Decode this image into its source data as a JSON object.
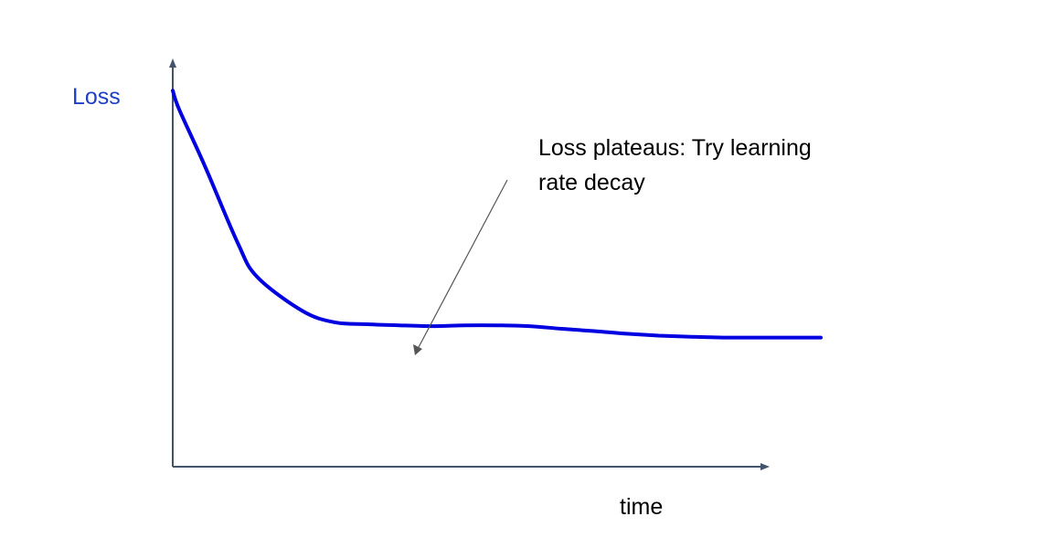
{
  "chart_data": {
    "type": "line",
    "title": "",
    "ylabel": "Loss",
    "xlabel": "time",
    "grid": false,
    "legend": "none",
    "xlim": [
      0,
      1
    ],
    "ylim": [
      0,
      1
    ],
    "series": [
      {
        "x": [
          0.0,
          0.01,
          0.05,
          0.1,
          0.13,
          0.2,
          0.25,
          0.3,
          0.35,
          0.4,
          0.45,
          0.5,
          0.55,
          0.6,
          0.65,
          0.7,
          0.75,
          0.8,
          0.85,
          0.9,
          0.95,
          1.0
        ],
        "values": [
          0.99,
          0.94,
          0.79,
          0.59,
          0.5,
          0.41,
          0.38,
          0.375,
          0.372,
          0.37,
          0.372,
          0.372,
          0.37,
          0.363,
          0.357,
          0.35,
          0.345,
          0.342,
          0.34,
          0.34,
          0.34,
          0.34
        ]
      }
    ],
    "annotations": [
      {
        "line1": "Loss plateaus: Try learning",
        "line2": "rate decay"
      }
    ],
    "colors": {
      "series": "#0000e0",
      "ylabel": "#1f3fc6",
      "axis": "#44546a",
      "arrow": "#555555"
    }
  }
}
